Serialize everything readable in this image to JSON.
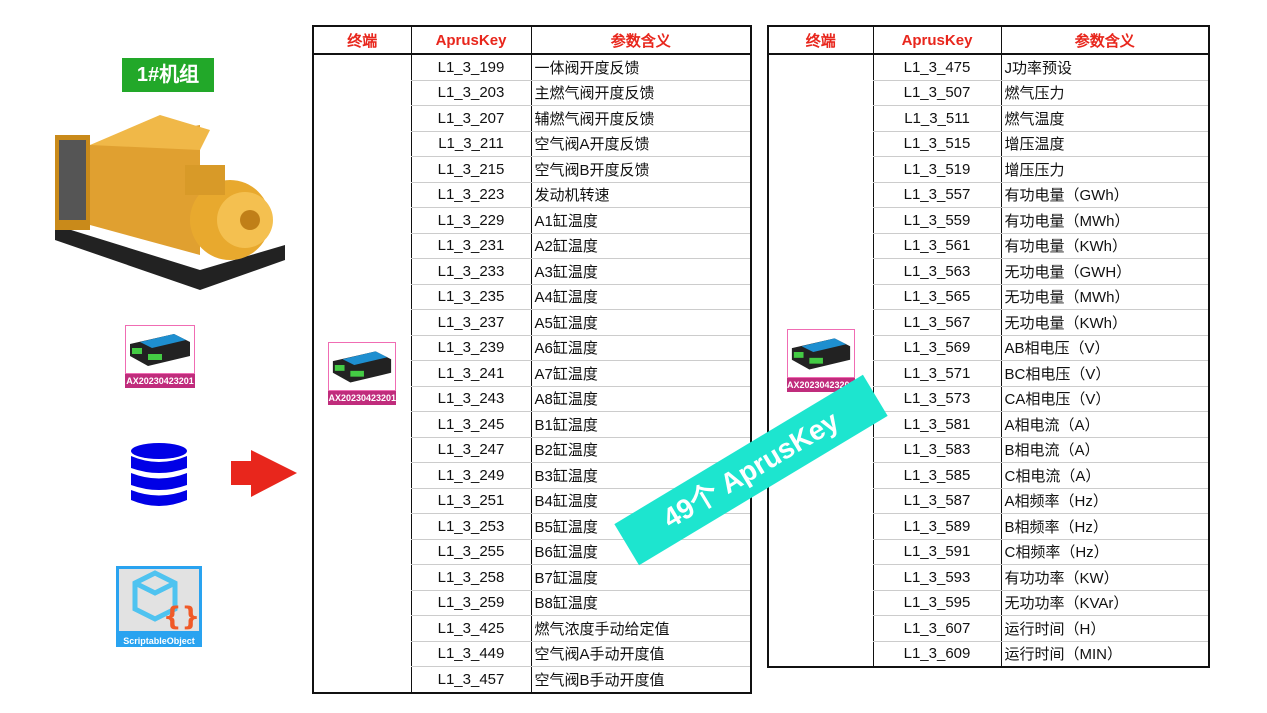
{
  "unit_label": "1#机组",
  "device_id": "AX20230423201",
  "scriptable_label": "ScriptableObject",
  "banner": "49个 AprusKey",
  "headers": {
    "terminal": "终端",
    "key": "AprusKey",
    "meaning": "参数含义"
  },
  "colors": {
    "header_text": "#e8261c",
    "unit_label_bg": "#22a829",
    "banner_bg": "#1de5cf",
    "arrow": "#e8261c",
    "database": "#0000e6"
  },
  "table_left": [
    [
      "L1_3_199",
      "一体阀开度反馈"
    ],
    [
      "L1_3_203",
      "主燃气阀开度反馈"
    ],
    [
      "L1_3_207",
      "辅燃气阀开度反馈"
    ],
    [
      "L1_3_211",
      "空气阀A开度反馈"
    ],
    [
      "L1_3_215",
      "空气阀B开度反馈"
    ],
    [
      "L1_3_223",
      "发动机转速"
    ],
    [
      "L1_3_229",
      "A1缸温度"
    ],
    [
      "L1_3_231",
      "A2缸温度"
    ],
    [
      "L1_3_233",
      "A3缸温度"
    ],
    [
      "L1_3_235",
      "A4缸温度"
    ],
    [
      "L1_3_237",
      "A5缸温度"
    ],
    [
      "L1_3_239",
      "A6缸温度"
    ],
    [
      "L1_3_241",
      "A7缸温度"
    ],
    [
      "L1_3_243",
      "A8缸温度"
    ],
    [
      "L1_3_245",
      "B1缸温度"
    ],
    [
      "L1_3_247",
      "B2缸温度"
    ],
    [
      "L1_3_249",
      "B3缸温度"
    ],
    [
      "L1_3_251",
      "B4缸温度"
    ],
    [
      "L1_3_253",
      "B5缸温度"
    ],
    [
      "L1_3_255",
      "B6缸温度"
    ],
    [
      "L1_3_258",
      "B7缸温度"
    ],
    [
      "L1_3_259",
      "B8缸温度"
    ],
    [
      "L1_3_425",
      "燃气浓度手动给定值"
    ],
    [
      "L1_3_449",
      "空气阀A手动开度值"
    ],
    [
      "L1_3_457",
      "空气阀B手动开度值"
    ]
  ],
  "table_right": [
    [
      "L1_3_475",
      "J功率预设"
    ],
    [
      "L1_3_507",
      "燃气压力"
    ],
    [
      "L1_3_511",
      "燃气温度"
    ],
    [
      "L1_3_515",
      "增压温度"
    ],
    [
      "L1_3_519",
      "增压压力"
    ],
    [
      "L1_3_557",
      "有功电量（GWh）"
    ],
    [
      "L1_3_559",
      "有功电量（MWh）"
    ],
    [
      "L1_3_561",
      "有功电量（KWh）"
    ],
    [
      "L1_3_563",
      "无功电量（GWH）"
    ],
    [
      "L1_3_565",
      "无功电量（MWh）"
    ],
    [
      "L1_3_567",
      "无功电量（KWh）"
    ],
    [
      "L1_3_569",
      "AB相电压（V）"
    ],
    [
      "L1_3_571",
      "BC相电压（V）"
    ],
    [
      "L1_3_573",
      "CA相电压（V）"
    ],
    [
      "L1_3_581",
      "A相电流（A）"
    ],
    [
      "L1_3_583",
      "B相电流（A）"
    ],
    [
      "L1_3_585",
      "C相电流（A）"
    ],
    [
      "L1_3_587",
      "A相频率（Hz）"
    ],
    [
      "L1_3_589",
      "B相频率（Hz）"
    ],
    [
      "L1_3_591",
      "C相频率（Hz）"
    ],
    [
      "L1_3_593",
      "有功功率（KW）"
    ],
    [
      "L1_3_595",
      "无功功率（KVAr）"
    ],
    [
      "L1_3_607",
      "运行时间（H）"
    ],
    [
      "L1_3_609",
      "运行时间（MIN）"
    ]
  ]
}
